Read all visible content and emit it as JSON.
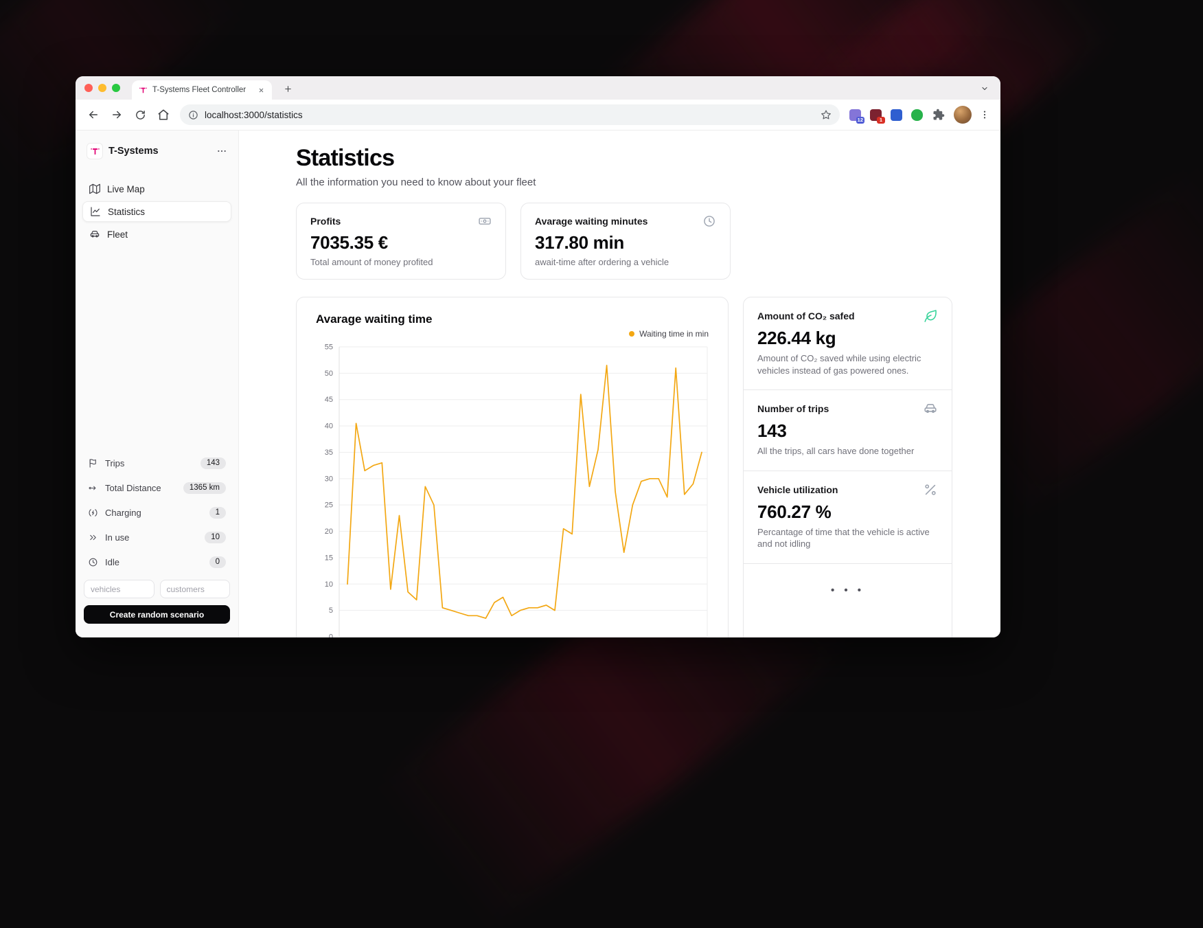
{
  "colors": {
    "brand_magenta": "#e20074",
    "chart_line": "#f3a712",
    "leaf_green": "#34d399",
    "cta_black": "#09090b"
  },
  "browser": {
    "tab_title": "T-Systems Fleet Controller",
    "url": "localhost:3000/statistics",
    "extensions": [
      {
        "badge": "12"
      },
      {
        "badge": "1"
      },
      {
        "badge": ""
      },
      {
        "badge": ""
      }
    ]
  },
  "sidebar": {
    "brand": "T-Systems",
    "nav": [
      {
        "label": "Live Map"
      },
      {
        "label": "Statistics"
      },
      {
        "label": "Fleet"
      }
    ],
    "stats": [
      {
        "label": "Trips",
        "value": "143"
      },
      {
        "label": "Total Distance",
        "value": "1365 km"
      },
      {
        "label": "Charging",
        "value": "1"
      },
      {
        "label": "In use",
        "value": "10"
      },
      {
        "label": "Idle",
        "value": "0"
      }
    ],
    "inputs": {
      "vehicles_placeholder": "vehicles",
      "customers_placeholder": "customers"
    },
    "cta": "Create random scenario"
  },
  "main": {
    "title": "Statistics",
    "subtitle": "All the information you need to know about your fleet",
    "stat_cards": [
      {
        "label": "Profits",
        "value": "7035.35 €",
        "caption": "Total amount of money profited",
        "icon": "banknote-icon"
      },
      {
        "label": "Avarage waiting minutes",
        "value": "317.80 min",
        "caption": "await-time after ordering a vehicle",
        "icon": "clock-icon"
      }
    ],
    "side_cards": [
      {
        "label": "Amount of CO₂ safed",
        "value": "226.44 kg",
        "caption": "Amount of CO₂ saved while using electric vehicles instead of gas powered ones.",
        "icon": "leaf-icon"
      },
      {
        "label": "Number of trips",
        "value": "143",
        "caption": "All the trips, all cars have done together",
        "icon": "car-icon"
      },
      {
        "label": "Vehicle utilization",
        "value": "760.27 %",
        "caption": "Percantage of time that the vehicle is active and not idling",
        "icon": "percent-icon"
      }
    ],
    "more_indicator": "• • •"
  },
  "chart_data": {
    "type": "line",
    "title": "Avarage waiting time",
    "xlabel": "",
    "ylabel": "",
    "ylim": [
      0,
      55
    ],
    "yticks": [
      0,
      5,
      10,
      15,
      20,
      25,
      30,
      35,
      40,
      45,
      50,
      55
    ],
    "grid": true,
    "legend_position": "top-right",
    "series": [
      {
        "name": "Waiting time in min",
        "color": "#f3a712",
        "values": [
          10,
          40.5,
          31.5,
          32.5,
          33,
          9,
          23,
          8.5,
          7,
          28.5,
          25,
          5.5,
          5,
          4.5,
          4,
          4,
          3.5,
          6.5,
          7.5,
          4,
          5,
          5.5,
          5.5,
          6,
          5,
          20.5,
          19.5,
          46,
          28.5,
          35.5,
          51.5,
          27.5,
          16,
          25,
          29.5,
          30,
          30,
          26.5,
          51,
          27,
          29,
          35
        ]
      }
    ]
  }
}
